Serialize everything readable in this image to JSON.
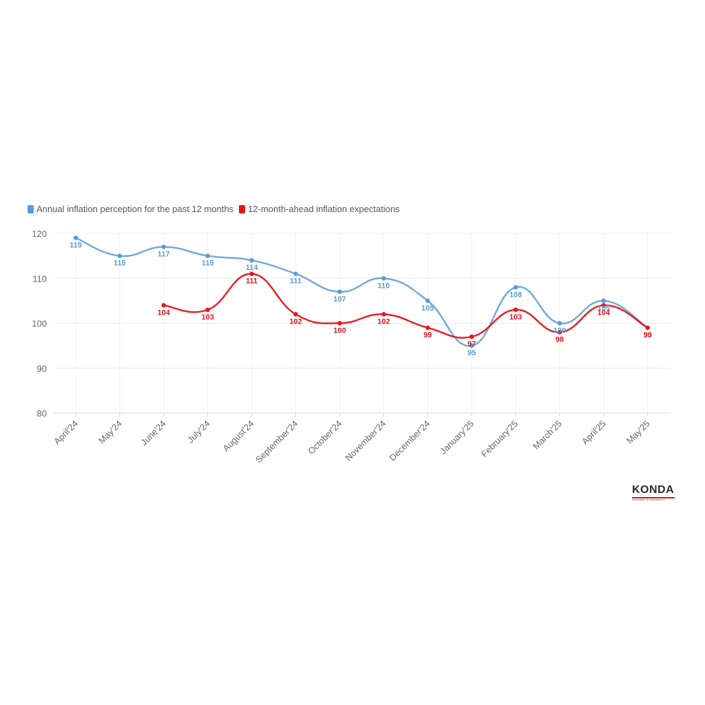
{
  "chart_data": {
    "type": "line",
    "categories": [
      "April'24",
      "May'24",
      "June'24",
      "July'24",
      "August'24",
      "September'24",
      "October'24",
      "November'24",
      "December'24",
      "January'25",
      "February'25",
      "March'25",
      "April'25",
      "May'25"
    ],
    "series": [
      {
        "name": "Annual inflation perception for the past 12 months",
        "color": "#5b9bd5",
        "values": [
          119,
          115,
          117,
          115,
          114,
          111,
          107,
          110,
          105,
          95,
          108,
          100,
          105,
          99
        ]
      },
      {
        "name": "12-month-ahead inflation expectations",
        "color": "#e8141b",
        "values": [
          null,
          null,
          104,
          103,
          111,
          102,
          100,
          102,
          99,
          97,
          103,
          98,
          104,
          99
        ]
      }
    ],
    "ylim": [
      80,
      120
    ],
    "yticks": [
      80,
      90,
      100,
      110,
      120
    ],
    "grid": true,
    "legend": "top-left",
    "xlabel": "",
    "ylabel": ""
  },
  "logo": {
    "text": "KONDA",
    "subtitle": "ARAŞTIRMA VE DANIŞMANLIK"
  }
}
